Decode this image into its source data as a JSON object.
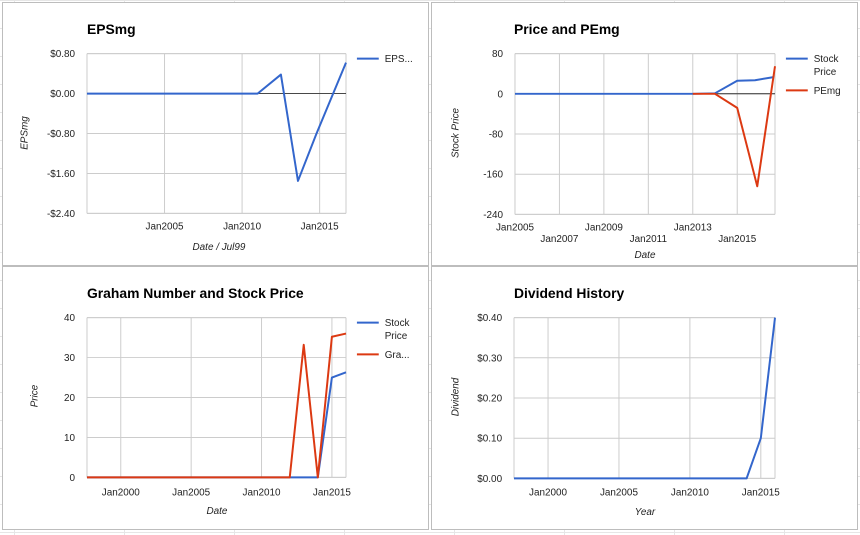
{
  "colors": {
    "blue": "#3366cc",
    "red": "#dc3912",
    "grid": "#cccccc",
    "zero": "#333333"
  },
  "chart_data": [
    {
      "type": "line",
      "title": "EPSmg",
      "xlabel": "Date / Jul99",
      "ylabel": "EPSmg",
      "xlim": [
        2000.0,
        2016.7
      ],
      "ylim": [
        -2.4,
        0.8
      ],
      "x_ticks": [
        {
          "v": 2005,
          "label": "Jan2005"
        },
        {
          "v": 2010,
          "label": "Jan2010"
        },
        {
          "v": 2015,
          "label": "Jan2015"
        }
      ],
      "y_ticks": [
        {
          "v": 0.8,
          "label": "$0.80"
        },
        {
          "v": 0.0,
          "label": "$0.00"
        },
        {
          "v": -0.8,
          "label": "-$0.80"
        },
        {
          "v": -1.6,
          "label": "-$1.60"
        },
        {
          "v": -2.4,
          "label": "-$2.40"
        }
      ],
      "zero_line": 0,
      "legend_position": "right",
      "series": [
        {
          "name": "EPS...",
          "color": "#3366cc",
          "points": [
            [
              2000.0,
              0.0
            ],
            [
              2011.0,
              0.0
            ],
            [
              2012.5,
              0.38
            ],
            [
              2013.6,
              -1.75
            ],
            [
              2014.8,
              -0.8
            ],
            [
              2016.7,
              0.62
            ]
          ]
        }
      ]
    },
    {
      "type": "line",
      "title": "Price and PEmg",
      "xlabel": "Date",
      "ylabel": "Stock Price",
      "xlim": [
        2005.0,
        2016.7
      ],
      "ylim": [
        -240,
        80
      ],
      "x_ticks": [
        {
          "v": 2005,
          "label": "Jan2005",
          "row": 0
        },
        {
          "v": 2007,
          "label": "Jan2007",
          "row": 1
        },
        {
          "v": 2009,
          "label": "Jan2009",
          "row": 0
        },
        {
          "v": 2011,
          "label": "Jan2011",
          "row": 1
        },
        {
          "v": 2013,
          "label": "Jan2013",
          "row": 0
        },
        {
          "v": 2015,
          "label": "Jan2015",
          "row": 1
        }
      ],
      "y_ticks": [
        {
          "v": 80,
          "label": "80"
        },
        {
          "v": 0,
          "label": "0"
        },
        {
          "v": -80,
          "label": "-80"
        },
        {
          "v": -160,
          "label": "-160"
        },
        {
          "v": -240,
          "label": "-240"
        }
      ],
      "zero_line": 0,
      "legend_position": "right",
      "series": [
        {
          "name": "Stock Price",
          "legend_lines": [
            "Stock",
            "Price"
          ],
          "color": "#3366cc",
          "points": [
            [
              2005.0,
              0
            ],
            [
              2013.0,
              0
            ],
            [
              2014.0,
              1
            ],
            [
              2015.0,
              26
            ],
            [
              2015.8,
              27
            ],
            [
              2016.6,
              33
            ]
          ]
        },
        {
          "name": "PEmg",
          "legend_lines": [
            "PEmg"
          ],
          "color": "#dc3912",
          "points": [
            [
              2013.0,
              0
            ],
            [
              2014.0,
              0
            ],
            [
              2015.0,
              -28
            ],
            [
              2015.9,
              -184
            ],
            [
              2016.7,
              55
            ]
          ]
        }
      ]
    },
    {
      "type": "line",
      "title": "Graham Number and Stock Price",
      "xlabel": "Date",
      "ylabel": "Price",
      "xlim": [
        1997.6,
        2016.0
      ],
      "ylim": [
        0,
        40
      ],
      "x_ticks": [
        {
          "v": 2000,
          "label": "Jan2000"
        },
        {
          "v": 2005,
          "label": "Jan2005"
        },
        {
          "v": 2010,
          "label": "Jan2010"
        },
        {
          "v": 2015,
          "label": "Jan2015"
        }
      ],
      "y_ticks": [
        {
          "v": 40,
          "label": "40"
        },
        {
          "v": 30,
          "label": "30"
        },
        {
          "v": 20,
          "label": "20"
        },
        {
          "v": 10,
          "label": "10"
        },
        {
          "v": 0,
          "label": "0"
        }
      ],
      "legend_position": "right",
      "series": [
        {
          "name": "Stock Price",
          "legend_lines": [
            "Stock",
            "Price"
          ],
          "color": "#3366cc",
          "points": [
            [
              1997.6,
              0
            ],
            [
              2014.0,
              0
            ],
            [
              2015.0,
              25
            ],
            [
              2016.0,
              26.3
            ]
          ]
        },
        {
          "name": "Gra...",
          "legend_lines": [
            "Gra..."
          ],
          "color": "#dc3912",
          "points": [
            [
              1997.6,
              0
            ],
            [
              2012.0,
              0
            ],
            [
              2013.0,
              33.2
            ],
            [
              2014.0,
              0
            ],
            [
              2015.0,
              35.2
            ],
            [
              2016.0,
              36
            ]
          ]
        }
      ]
    },
    {
      "type": "line",
      "title": "Dividend History",
      "xlabel": "Year",
      "ylabel": "Dividend",
      "xlim": [
        1997.6,
        2016.0
      ],
      "ylim": [
        0,
        0.4
      ],
      "x_ticks": [
        {
          "v": 2000,
          "label": "Jan2000"
        },
        {
          "v": 2005,
          "label": "Jan2005"
        },
        {
          "v": 2010,
          "label": "Jan2010"
        },
        {
          "v": 2015,
          "label": "Jan2015"
        }
      ],
      "y_ticks": [
        {
          "v": 0.4,
          "label": "$0.40"
        },
        {
          "v": 0.3,
          "label": "$0.30"
        },
        {
          "v": 0.2,
          "label": "$0.20"
        },
        {
          "v": 0.1,
          "label": "$0.10"
        },
        {
          "v": 0.0,
          "label": "$0.00"
        }
      ],
      "legend_position": "none",
      "series": [
        {
          "name": "",
          "color": "#3366cc",
          "points": [
            [
              1997.6,
              0
            ],
            [
              2014.0,
              0
            ],
            [
              2015.0,
              0.1
            ],
            [
              2016.0,
              0.4
            ]
          ]
        }
      ]
    }
  ]
}
